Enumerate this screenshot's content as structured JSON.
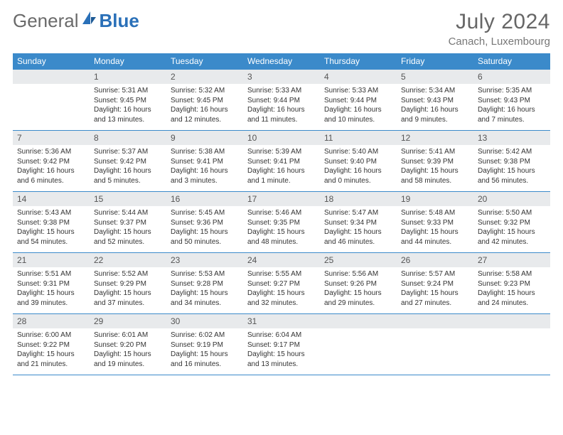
{
  "brand": {
    "general": "General",
    "blue": "Blue"
  },
  "title": {
    "month": "July 2024",
    "location": "Canach, Luxembourg"
  },
  "colors": {
    "header_bg": "#3b8aca",
    "header_text": "#ffffff",
    "daynum_bg": "#e8eaec",
    "border": "#3b8aca",
    "brand_blue": "#2a70b8",
    "text": "#333333"
  },
  "weekdays": [
    "Sunday",
    "Monday",
    "Tuesday",
    "Wednesday",
    "Thursday",
    "Friday",
    "Saturday"
  ],
  "days": [
    {
      "n": "1",
      "sr": "5:31 AM",
      "ss": "9:45 PM",
      "dl": "16 hours and 13 minutes."
    },
    {
      "n": "2",
      "sr": "5:32 AM",
      "ss": "9:45 PM",
      "dl": "16 hours and 12 minutes."
    },
    {
      "n": "3",
      "sr": "5:33 AM",
      "ss": "9:44 PM",
      "dl": "16 hours and 11 minutes."
    },
    {
      "n": "4",
      "sr": "5:33 AM",
      "ss": "9:44 PM",
      "dl": "16 hours and 10 minutes."
    },
    {
      "n": "5",
      "sr": "5:34 AM",
      "ss": "9:43 PM",
      "dl": "16 hours and 9 minutes."
    },
    {
      "n": "6",
      "sr": "5:35 AM",
      "ss": "9:43 PM",
      "dl": "16 hours and 7 minutes."
    },
    {
      "n": "7",
      "sr": "5:36 AM",
      "ss": "9:42 PM",
      "dl": "16 hours and 6 minutes."
    },
    {
      "n": "8",
      "sr": "5:37 AM",
      "ss": "9:42 PM",
      "dl": "16 hours and 5 minutes."
    },
    {
      "n": "9",
      "sr": "5:38 AM",
      "ss": "9:41 PM",
      "dl": "16 hours and 3 minutes."
    },
    {
      "n": "10",
      "sr": "5:39 AM",
      "ss": "9:41 PM",
      "dl": "16 hours and 1 minute."
    },
    {
      "n": "11",
      "sr": "5:40 AM",
      "ss": "9:40 PM",
      "dl": "16 hours and 0 minutes."
    },
    {
      "n": "12",
      "sr": "5:41 AM",
      "ss": "9:39 PM",
      "dl": "15 hours and 58 minutes."
    },
    {
      "n": "13",
      "sr": "5:42 AM",
      "ss": "9:38 PM",
      "dl": "15 hours and 56 minutes."
    },
    {
      "n": "14",
      "sr": "5:43 AM",
      "ss": "9:38 PM",
      "dl": "15 hours and 54 minutes."
    },
    {
      "n": "15",
      "sr": "5:44 AM",
      "ss": "9:37 PM",
      "dl": "15 hours and 52 minutes."
    },
    {
      "n": "16",
      "sr": "5:45 AM",
      "ss": "9:36 PM",
      "dl": "15 hours and 50 minutes."
    },
    {
      "n": "17",
      "sr": "5:46 AM",
      "ss": "9:35 PM",
      "dl": "15 hours and 48 minutes."
    },
    {
      "n": "18",
      "sr": "5:47 AM",
      "ss": "9:34 PM",
      "dl": "15 hours and 46 minutes."
    },
    {
      "n": "19",
      "sr": "5:48 AM",
      "ss": "9:33 PM",
      "dl": "15 hours and 44 minutes."
    },
    {
      "n": "20",
      "sr": "5:50 AM",
      "ss": "9:32 PM",
      "dl": "15 hours and 42 minutes."
    },
    {
      "n": "21",
      "sr": "5:51 AM",
      "ss": "9:31 PM",
      "dl": "15 hours and 39 minutes."
    },
    {
      "n": "22",
      "sr": "5:52 AM",
      "ss": "9:29 PM",
      "dl": "15 hours and 37 minutes."
    },
    {
      "n": "23",
      "sr": "5:53 AM",
      "ss": "9:28 PM",
      "dl": "15 hours and 34 minutes."
    },
    {
      "n": "24",
      "sr": "5:55 AM",
      "ss": "9:27 PM",
      "dl": "15 hours and 32 minutes."
    },
    {
      "n": "25",
      "sr": "5:56 AM",
      "ss": "9:26 PM",
      "dl": "15 hours and 29 minutes."
    },
    {
      "n": "26",
      "sr": "5:57 AM",
      "ss": "9:24 PM",
      "dl": "15 hours and 27 minutes."
    },
    {
      "n": "27",
      "sr": "5:58 AM",
      "ss": "9:23 PM",
      "dl": "15 hours and 24 minutes."
    },
    {
      "n": "28",
      "sr": "6:00 AM",
      "ss": "9:22 PM",
      "dl": "15 hours and 21 minutes."
    },
    {
      "n": "29",
      "sr": "6:01 AM",
      "ss": "9:20 PM",
      "dl": "15 hours and 19 minutes."
    },
    {
      "n": "30",
      "sr": "6:02 AM",
      "ss": "9:19 PM",
      "dl": "15 hours and 16 minutes."
    },
    {
      "n": "31",
      "sr": "6:04 AM",
      "ss": "9:17 PM",
      "dl": "15 hours and 13 minutes."
    }
  ],
  "labels": {
    "sunrise": "Sunrise:",
    "sunset": "Sunset:",
    "daylight": "Daylight:"
  },
  "start_weekday": 1
}
